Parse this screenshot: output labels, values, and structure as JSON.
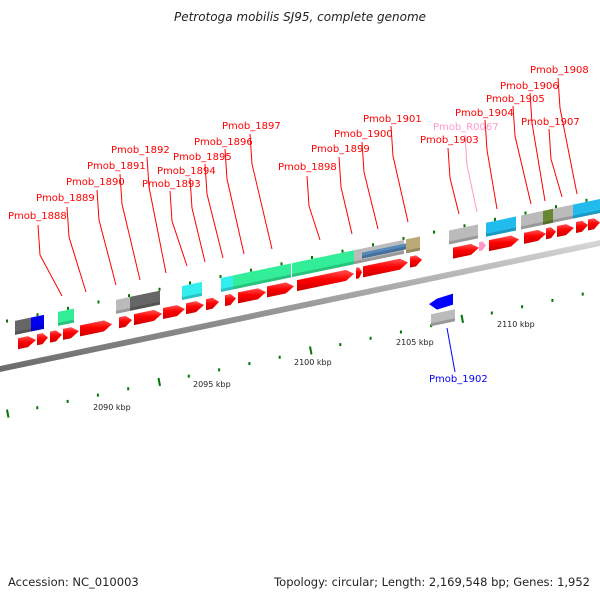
{
  "title": "Petrotoga mobilis SJ95, complete genome",
  "footer": {
    "accession": "Accession: NC_010003",
    "summary": "Topology: circular; Length: 2,169,548 bp; Genes: 1,952"
  },
  "colors": {
    "forward_cds": "#ff0000",
    "reverse_cds": "#0000ff",
    "rna": "#ff99cc",
    "tick": "#007700",
    "backbone": "#999999"
  },
  "scale": {
    "unit": "kbp",
    "labels": [
      "2090 kbp",
      "2095 kbp",
      "2100 kbp",
      "2105 kbp",
      "2110 kbp"
    ]
  },
  "genes": [
    {
      "id": "Pmob_1888",
      "strand": "+",
      "color": "red"
    },
    {
      "id": "Pmob_1889",
      "strand": "+",
      "color": "red"
    },
    {
      "id": "Pmob_1890",
      "strand": "+",
      "color": "red"
    },
    {
      "id": "Pmob_1891",
      "strand": "+",
      "color": "red"
    },
    {
      "id": "Pmob_1892",
      "strand": "+",
      "color": "red"
    },
    {
      "id": "Pmob_1893",
      "strand": "+",
      "color": "red"
    },
    {
      "id": "Pmob_1894",
      "strand": "+",
      "color": "red"
    },
    {
      "id": "Pmob_1895",
      "strand": "+",
      "color": "red"
    },
    {
      "id": "Pmob_1896",
      "strand": "+",
      "color": "red"
    },
    {
      "id": "Pmob_1897",
      "strand": "+",
      "color": "red"
    },
    {
      "id": "Pmob_1898",
      "strand": "+",
      "color": "red"
    },
    {
      "id": "Pmob_1899",
      "strand": "+",
      "color": "red"
    },
    {
      "id": "Pmob_1900",
      "strand": "+",
      "color": "red"
    },
    {
      "id": "Pmob_1901",
      "strand": "+",
      "color": "red"
    },
    {
      "id": "Pmob_1902",
      "strand": "-",
      "color": "blue"
    },
    {
      "id": "Pmob_1903",
      "strand": "+",
      "color": "red"
    },
    {
      "id": "Pmob_R0067",
      "strand": "+",
      "color": "pink"
    },
    {
      "id": "Pmob_1904",
      "strand": "+",
      "color": "red"
    },
    {
      "id": "Pmob_1905",
      "strand": "+",
      "color": "red"
    },
    {
      "id": "Pmob_1906",
      "strand": "+",
      "color": "red"
    },
    {
      "id": "Pmob_1907",
      "strand": "+",
      "color": "red"
    },
    {
      "id": "Pmob_1908",
      "strand": "+",
      "color": "red"
    }
  ]
}
